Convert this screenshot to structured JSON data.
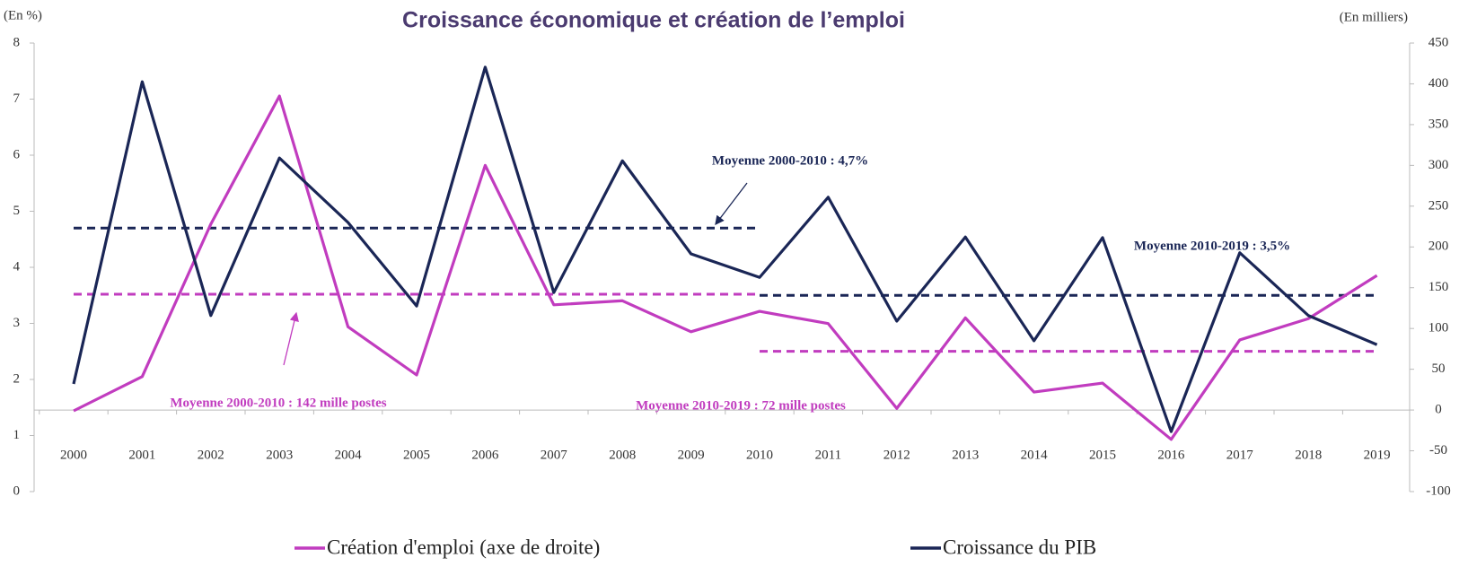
{
  "chart_data": {
    "type": "line",
    "title": "Croissance économique et création de l’emploi",
    "y_axis_label": "(En %)",
    "y2_axis_label": "(En milliers)",
    "categories": [
      "2000",
      "2001",
      "2002",
      "2003",
      "2004",
      "2005",
      "2006",
      "2007",
      "2008",
      "2009",
      "2010",
      "2011",
      "2012",
      "2013",
      "2014",
      "2015",
      "2016",
      "2017",
      "2018",
      "2019"
    ],
    "series": [
      {
        "name": "Création d'emploi (axe de droite)",
        "color": "#c13cbf",
        "axis": "y2",
        "values": [
          -1,
          41,
          228,
          385,
          102,
          43,
          300,
          129,
          134,
          96,
          121,
          106,
          2,
          113,
          22,
          33,
          -36,
          86,
          112,
          165
        ]
      },
      {
        "name": "Croissance du PIB",
        "color": "#1a2656",
        "axis": "y",
        "values": [
          1.92,
          7.31,
          3.14,
          5.95,
          4.8,
          3.31,
          7.57,
          3.55,
          5.9,
          4.24,
          3.82,
          5.25,
          3.04,
          4.54,
          2.69,
          4.53,
          1.07,
          4.26,
          3.14,
          2.62
        ]
      }
    ],
    "averages": [
      {
        "label": "Moyenne 2000-2010 : 4,7%",
        "value": 4.7,
        "axis": "y",
        "color": "#1a2656",
        "start": "2000",
        "end": "2010"
      },
      {
        "label": "Moyenne 2010-2019 : 3,5%",
        "value": 3.5,
        "axis": "y",
        "color": "#1a2656",
        "start": "2010",
        "end": "2019"
      },
      {
        "label": "Moyenne 2000-2010 : 142 mille postes",
        "value": 142,
        "axis": "y2",
        "color": "#c13cbf",
        "start": "2000",
        "end": "2010"
      },
      {
        "label": "Moyenne 2010-2019 : 72 mille postes",
        "value": 72,
        "axis": "y2",
        "color": "#c13cbf",
        "start": "2010",
        "end": "2019"
      }
    ],
    "ylim": [
      0,
      8
    ],
    "yticks": [
      0,
      1,
      2,
      3,
      4,
      5,
      6,
      7,
      8
    ],
    "y2lim": [
      -100,
      450
    ],
    "y2ticks": [
      -100,
      -50,
      0,
      50,
      100,
      150,
      200,
      250,
      300,
      350,
      400,
      450
    ],
    "legend": "bottom"
  }
}
